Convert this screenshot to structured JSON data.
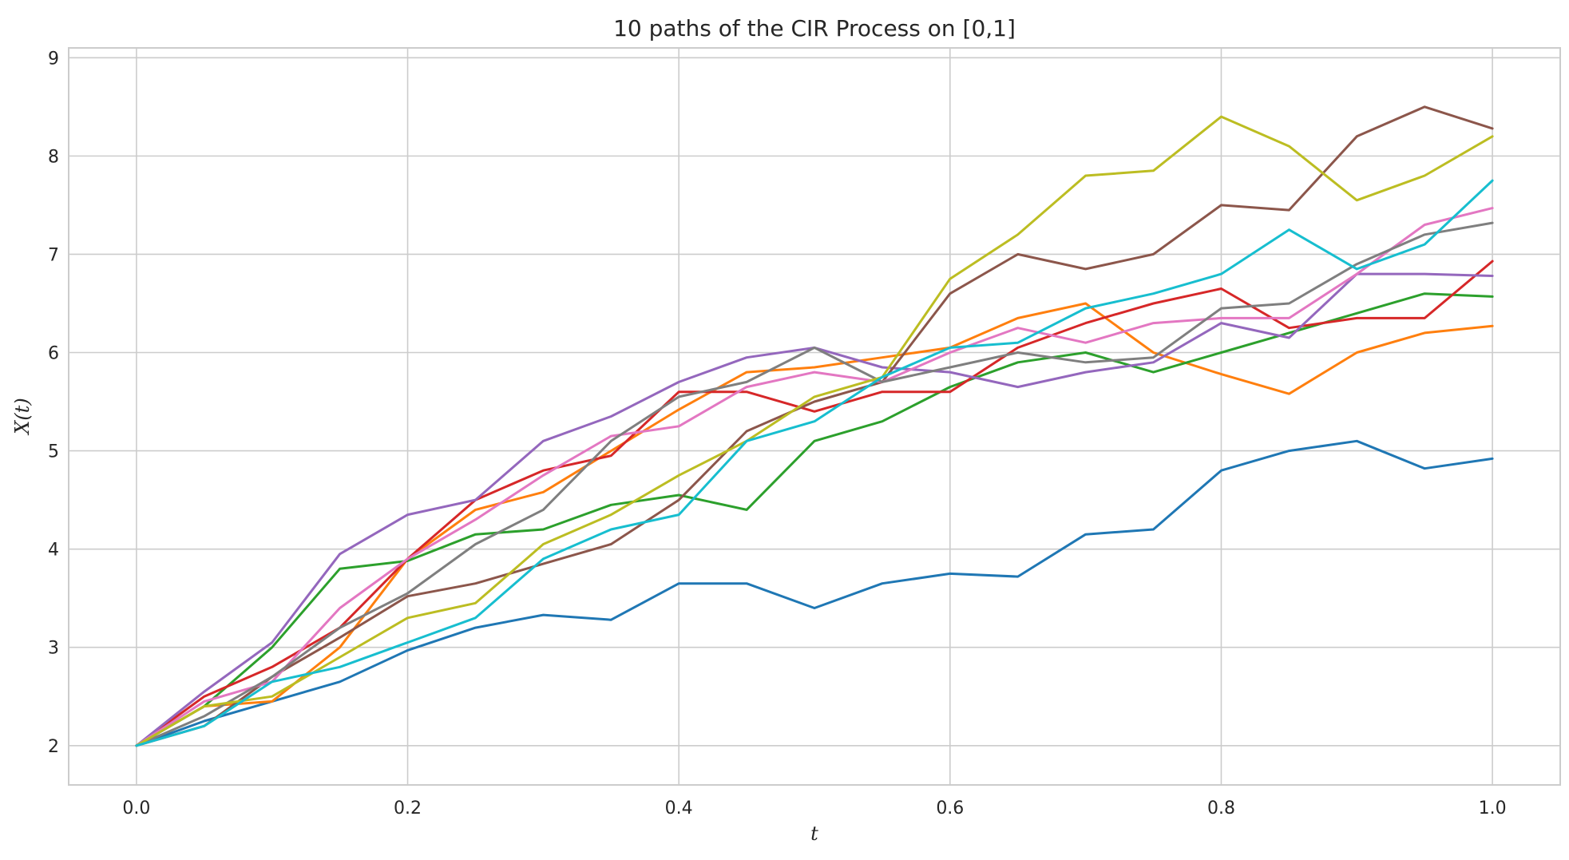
{
  "chart_data": {
    "type": "line",
    "title": "10 paths of the CIR Process on [0,1]",
    "xlabel": "t",
    "ylabel": "X(t)",
    "xlim": [
      -0.05,
      1.05
    ],
    "ylim": [
      1.6,
      9.1
    ],
    "xticks": [
      0.0,
      0.2,
      0.4,
      0.6,
      0.8,
      1.0
    ],
    "xtick_labels": [
      "0.0",
      "0.2",
      "0.4",
      "0.6",
      "0.8",
      "1.0"
    ],
    "yticks": [
      2,
      3,
      4,
      5,
      6,
      7,
      8,
      9
    ],
    "ytick_labels": [
      "2",
      "3",
      "4",
      "5",
      "6",
      "7",
      "8",
      "9"
    ],
    "grid": true,
    "x": [
      0.0,
      0.05,
      0.1,
      0.15,
      0.2,
      0.25,
      0.3,
      0.35,
      0.4,
      0.45,
      0.5,
      0.55,
      0.6,
      0.65,
      0.7,
      0.75,
      0.8,
      0.85,
      0.9,
      0.95,
      1.0
    ],
    "series": [
      {
        "color": "#1f77b4",
        "values": [
          2.0,
          2.25,
          2.45,
          2.65,
          2.97,
          3.2,
          3.33,
          3.28,
          3.65,
          3.65,
          3.4,
          3.65,
          3.75,
          3.72,
          4.15,
          4.2,
          4.8,
          5.0,
          5.1,
          4.82,
          4.92
        ]
      },
      {
        "color": "#ff7f0e",
        "values": [
          2.0,
          2.4,
          2.45,
          3.0,
          3.9,
          4.4,
          4.58,
          5.0,
          5.42,
          5.8,
          5.85,
          5.95,
          6.05,
          6.35,
          6.5,
          6.0,
          5.78,
          5.58,
          6.0,
          6.2,
          6.27
        ]
      },
      {
        "color": "#2ca02c",
        "values": [
          2.0,
          2.4,
          3.0,
          3.8,
          3.88,
          4.15,
          4.2,
          4.45,
          4.55,
          4.4,
          5.1,
          5.3,
          5.65,
          5.9,
          6.0,
          5.8,
          6.0,
          6.2,
          6.4,
          6.6,
          6.57
        ]
      },
      {
        "color": "#d62728",
        "values": [
          2.0,
          2.5,
          2.8,
          3.2,
          3.9,
          4.5,
          4.8,
          4.95,
          5.6,
          5.6,
          5.4,
          5.6,
          5.6,
          6.05,
          6.3,
          6.5,
          6.65,
          6.25,
          6.35,
          6.35,
          6.93
        ]
      },
      {
        "color": "#9467bd",
        "values": [
          2.0,
          2.55,
          3.05,
          3.95,
          4.35,
          4.5,
          5.1,
          5.35,
          5.7,
          5.95,
          6.05,
          5.85,
          5.8,
          5.65,
          5.8,
          5.9,
          6.3,
          6.15,
          6.8,
          6.8,
          6.78
        ]
      },
      {
        "color": "#8c564b",
        "values": [
          2.0,
          2.2,
          2.7,
          3.1,
          3.52,
          3.65,
          3.85,
          4.05,
          4.5,
          5.2,
          5.5,
          5.7,
          6.6,
          7.0,
          6.85,
          7.0,
          7.5,
          7.45,
          8.2,
          8.5,
          8.28
        ]
      },
      {
        "color": "#e377c2",
        "values": [
          2.0,
          2.45,
          2.65,
          3.4,
          3.9,
          4.3,
          4.75,
          5.15,
          5.25,
          5.65,
          5.8,
          5.7,
          6.0,
          6.25,
          6.1,
          6.3,
          6.35,
          6.35,
          6.8,
          7.3,
          7.47
        ]
      },
      {
        "color": "#7f7f7f",
        "values": [
          2.0,
          2.3,
          2.7,
          3.2,
          3.55,
          4.05,
          4.4,
          5.1,
          5.55,
          5.7,
          6.05,
          5.7,
          5.85,
          6.0,
          5.9,
          5.95,
          6.45,
          6.5,
          6.9,
          7.2,
          7.32
        ]
      },
      {
        "color": "#bcbd22",
        "values": [
          2.0,
          2.4,
          2.5,
          2.9,
          3.3,
          3.45,
          4.05,
          4.35,
          4.75,
          5.1,
          5.55,
          5.75,
          6.75,
          7.2,
          7.8,
          7.85,
          8.4,
          8.1,
          7.55,
          7.8,
          8.2
        ]
      },
      {
        "color": "#17becf",
        "values": [
          2.0,
          2.2,
          2.65,
          2.8,
          3.05,
          3.3,
          3.9,
          4.2,
          4.35,
          5.1,
          5.3,
          5.75,
          6.05,
          6.1,
          6.45,
          6.6,
          6.8,
          7.25,
          6.85,
          7.1,
          7.75
        ]
      }
    ]
  }
}
